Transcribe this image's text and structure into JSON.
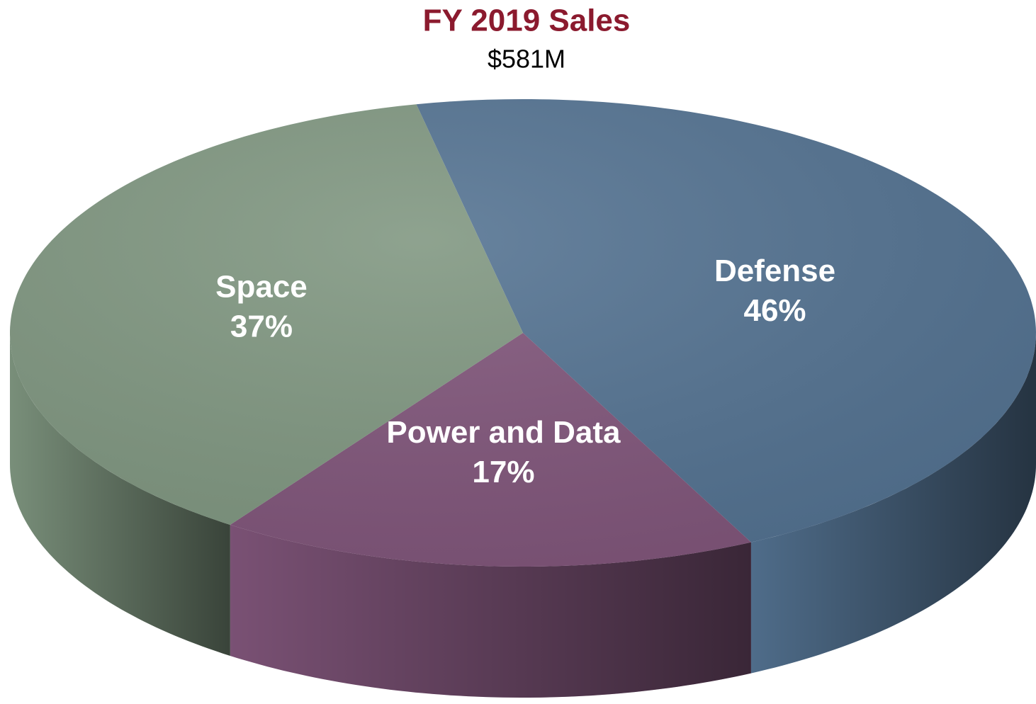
{
  "chart_data": {
    "type": "pie",
    "title": "FY 2019 Sales",
    "subtitle": "$581M",
    "categories": [
      "Defense",
      "Power and Data",
      "Space"
    ],
    "values": [
      46,
      17,
      37
    ],
    "value_labels": [
      "46%",
      "17%",
      "37%"
    ],
    "colors": [
      "#537291",
      "#80557a",
      "#7f9680"
    ]
  }
}
